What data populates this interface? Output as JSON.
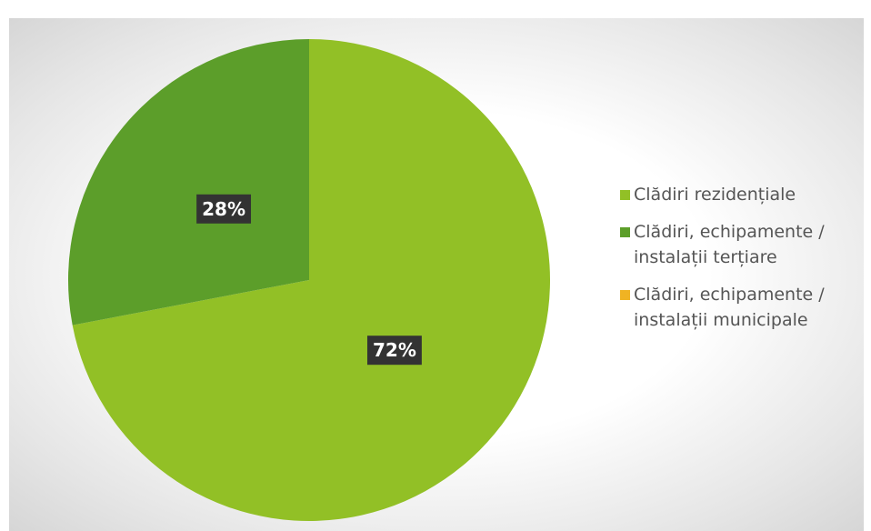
{
  "chart_data": {
    "type": "pie",
    "categories": [
      "Clădiri rezidențiale",
      "Clădiri, echipamente / instalații terțiare",
      "Clădiri, echipamente / instalații municipale"
    ],
    "values": [
      72,
      28,
      0
    ],
    "value_labels": [
      "72%",
      "28%",
      null
    ],
    "colors": [
      "#92c026",
      "#5c9e2a",
      "#f0b323"
    ],
    "legend": "right"
  }
}
